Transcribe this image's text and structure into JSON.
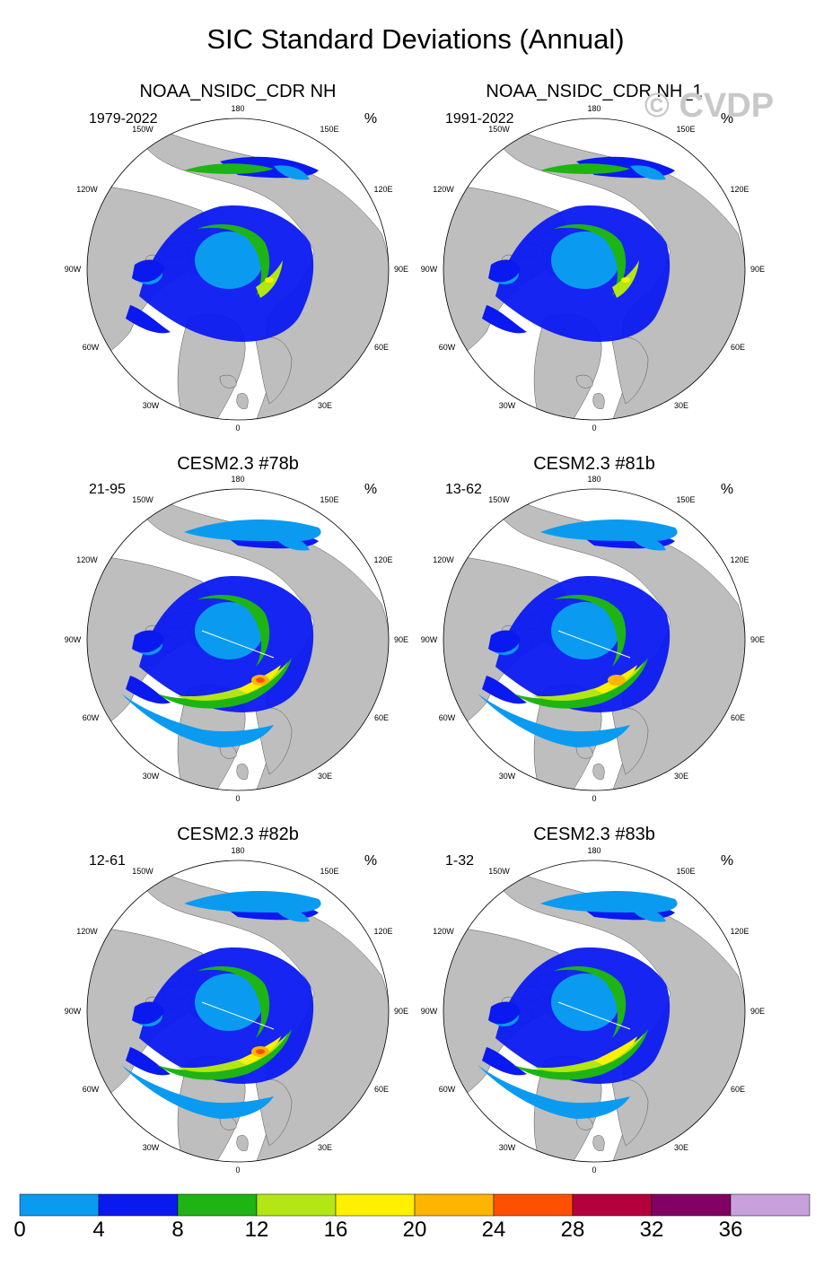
{
  "title": "SIC Standard Deviations (Annual)",
  "watermark": "© CVDP",
  "unit": "%",
  "longitude_labels": {
    "top": "180",
    "bottom": "0",
    "left": "90W",
    "right": "90E",
    "upper_left_1": "150W",
    "upper_left_2": "120W",
    "lower_left_1": "60W",
    "lower_left_2": "30W",
    "upper_right_1": "150E",
    "upper_right_2": "120E",
    "lower_right_1": "60E",
    "lower_right_2": "30E"
  },
  "panels": [
    {
      "title": "NOAA_NSIDC_CDR NH",
      "period": "1979-2022",
      "model": false,
      "hot": 0
    },
    {
      "title": "NOAA_NSIDC_CDR NH_1",
      "period": "1991-2022",
      "model": false,
      "hot": 0
    },
    {
      "title": "CESM2.3 #78b",
      "period": "21-95",
      "model": true,
      "hot": 3
    },
    {
      "title": "CESM2.3 #81b",
      "period": "13-62",
      "model": true,
      "hot": 2
    },
    {
      "title": "CESM2.3 #82b",
      "period": "12-61",
      "model": true,
      "hot": 3
    },
    {
      "title": "CESM2.3 #83b",
      "period": "1-32",
      "model": true,
      "hot": 1
    }
  ],
  "colorbar": {
    "levels": [
      "0",
      "4",
      "8",
      "12",
      "16",
      "20",
      "24",
      "28",
      "32",
      "36"
    ],
    "colors": [
      "#0a9bf0",
      "#0a19f0",
      "#1eb414",
      "#b4e614",
      "#fff000",
      "#ffb400",
      "#ff5000",
      "#b4003c",
      "#820064",
      "#c8a0dc"
    ]
  },
  "colors": {
    "land": "#bebebe",
    "ocean": "#ffffff"
  }
}
